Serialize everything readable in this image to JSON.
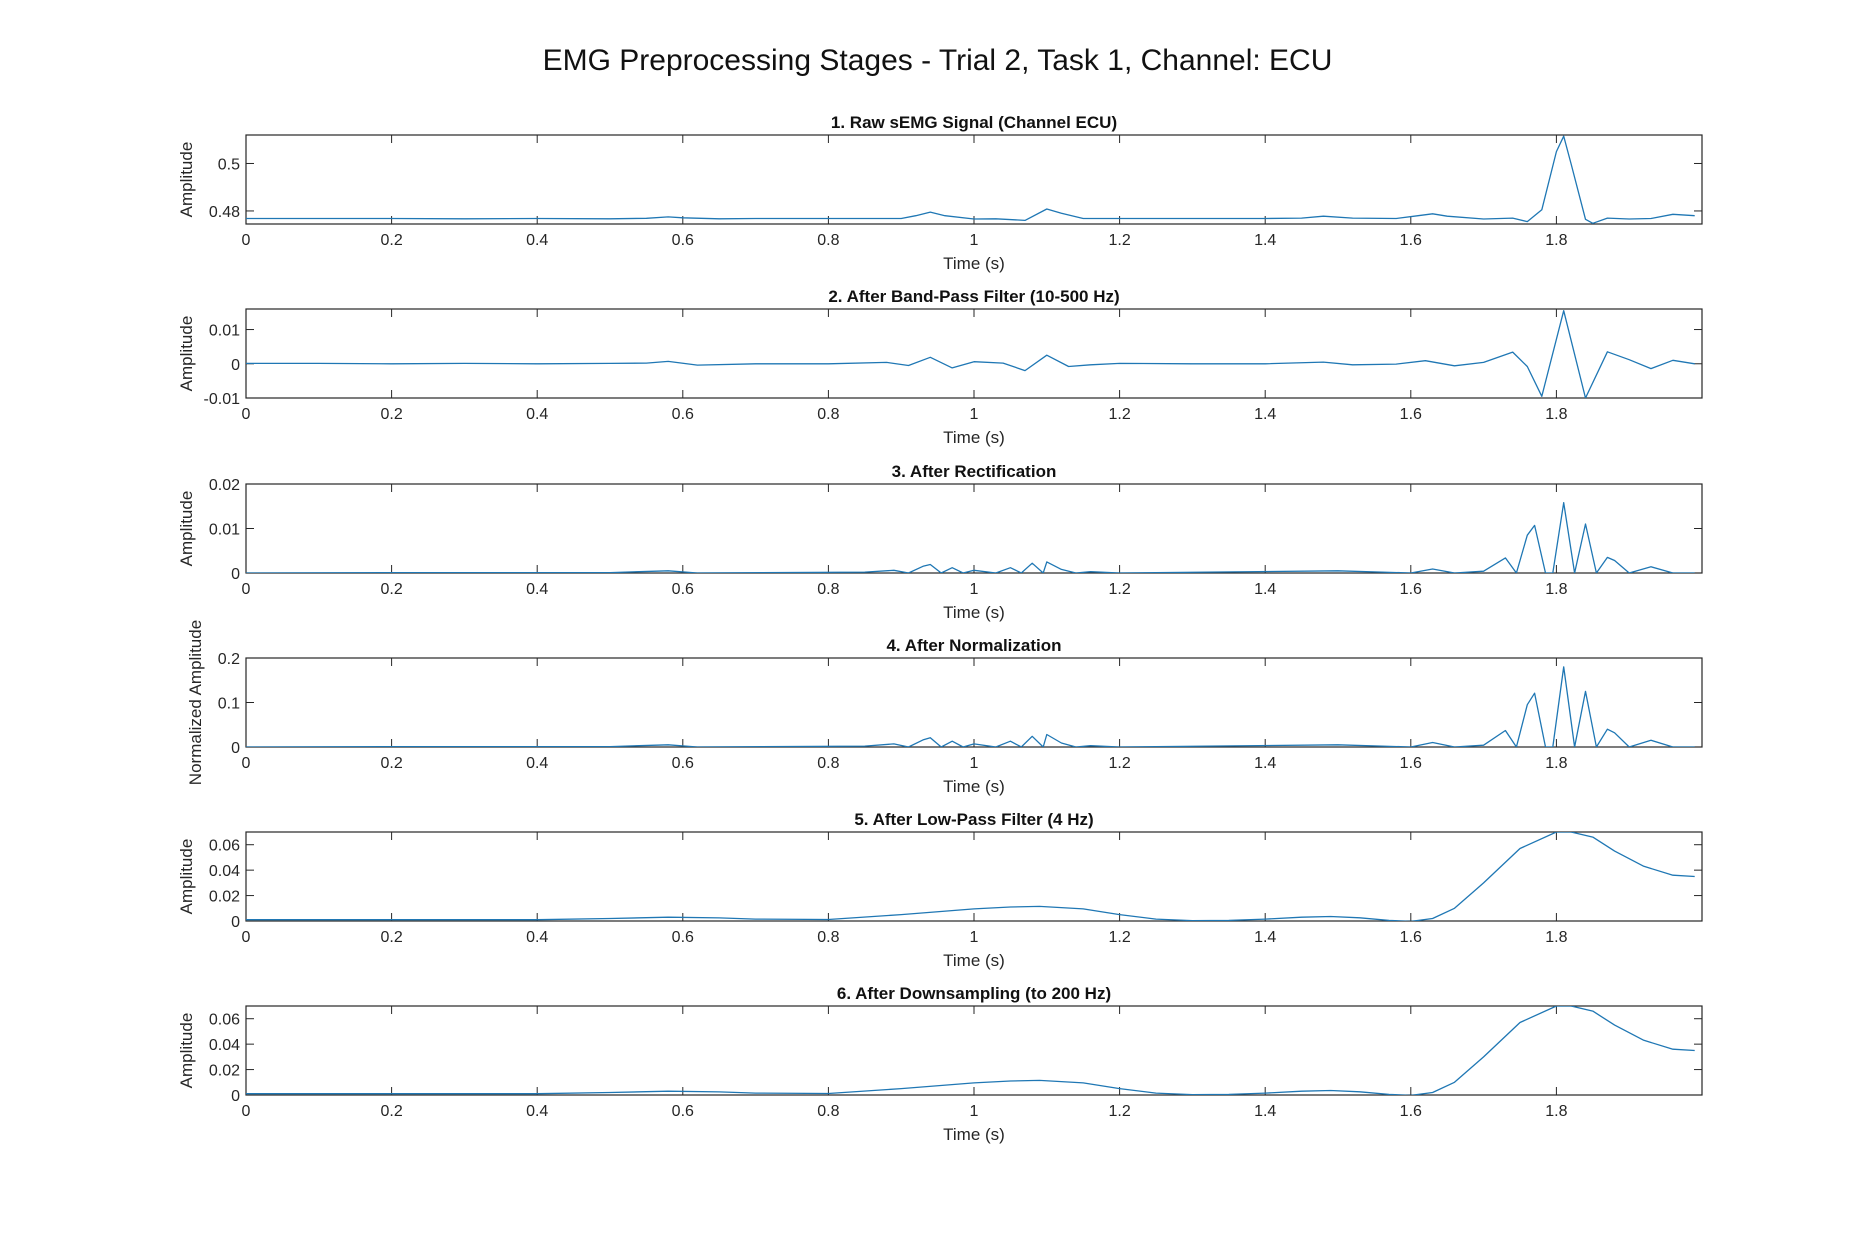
{
  "figure_title": "EMG Preprocessing Stages - Trial 2, Task 1, Channel: ECU",
  "colors": {
    "line": "#1f77b4",
    "axis": "#262626",
    "text": "#262626"
  },
  "chart_data": [
    {
      "type": "line",
      "title": "1. Raw sEMG Signal (Channel ECU)",
      "xlabel": "Time (s)",
      "ylabel": "Amplitude",
      "xlim": [
        0,
        2.0
      ],
      "ylim": [
        0.4745,
        0.512
      ],
      "xticks": [
        0,
        0.2,
        0.4,
        0.6,
        0.8,
        1,
        1.2,
        1.4,
        1.6,
        1.8
      ],
      "yticks": [
        0.48,
        0.5
      ],
      "grid": false,
      "x": [
        0,
        0.05,
        0.1,
        0.2,
        0.3,
        0.4,
        0.5,
        0.55,
        0.58,
        0.6,
        0.65,
        0.7,
        0.8,
        0.9,
        0.92,
        0.94,
        0.96,
        1.0,
        1.03,
        1.07,
        1.1,
        1.12,
        1.15,
        1.2,
        1.3,
        1.4,
        1.45,
        1.48,
        1.52,
        1.58,
        1.61,
        1.63,
        1.65,
        1.7,
        1.74,
        1.76,
        1.78,
        1.8,
        1.81,
        1.82,
        1.84,
        1.85,
        1.87,
        1.9,
        1.93,
        1.96,
        1.99
      ],
      "y": [
        0.4768,
        0.4768,
        0.4768,
        0.4768,
        0.4767,
        0.4768,
        0.4767,
        0.4769,
        0.4775,
        0.4771,
        0.4767,
        0.4768,
        0.4768,
        0.4768,
        0.478,
        0.4795,
        0.478,
        0.4766,
        0.4767,
        0.476,
        0.4808,
        0.479,
        0.4768,
        0.4768,
        0.4768,
        0.4768,
        0.477,
        0.4778,
        0.477,
        0.4768,
        0.478,
        0.4788,
        0.4778,
        0.4766,
        0.477,
        0.4755,
        0.4805,
        0.505,
        0.5115,
        0.5,
        0.4765,
        0.4748,
        0.477,
        0.4766,
        0.4768,
        0.4786,
        0.478
      ]
    },
    {
      "type": "line",
      "title": "2. After Band-Pass Filter (10-500 Hz)",
      "xlabel": "Time (s)",
      "ylabel": "Amplitude",
      "xlim": [
        0,
        2.0
      ],
      "ylim": [
        -0.01,
        0.016
      ],
      "xticks": [
        0,
        0.2,
        0.4,
        0.6,
        0.8,
        1,
        1.2,
        1.4,
        1.6,
        1.8
      ],
      "yticks": [
        -0.01,
        0,
        0.01
      ],
      "grid": false,
      "x": [
        0,
        0.1,
        0.2,
        0.3,
        0.4,
        0.5,
        0.55,
        0.58,
        0.62,
        0.7,
        0.8,
        0.88,
        0.91,
        0.94,
        0.97,
        1.0,
        1.04,
        1.07,
        1.1,
        1.13,
        1.16,
        1.2,
        1.3,
        1.4,
        1.48,
        1.52,
        1.58,
        1.62,
        1.66,
        1.7,
        1.74,
        1.76,
        1.78,
        1.81,
        1.84,
        1.87,
        1.9,
        1.93,
        1.96,
        1.99
      ],
      "y": [
        0.0001,
        0.0001,
        0.0,
        0.0001,
        0.0,
        0.0001,
        0.0002,
        0.0007,
        -0.0004,
        0.0,
        0.0,
        0.0004,
        -0.0005,
        0.0019,
        -0.0012,
        0.0006,
        0.0002,
        -0.002,
        0.0025,
        -0.0008,
        -0.0003,
        0.0001,
        0.0,
        0.0,
        0.0005,
        -0.0003,
        -0.0001,
        0.0009,
        -0.0006,
        0.0004,
        0.0034,
        -0.0008,
        -0.0095,
        0.0155,
        -0.01,
        0.0035,
        0.0012,
        -0.0014,
        0.001,
        0.0
      ]
    },
    {
      "type": "line",
      "title": "3. After Rectification",
      "xlabel": "Time (s)",
      "ylabel": "Amplitude",
      "xlim": [
        0,
        2.0
      ],
      "ylim": [
        0,
        0.02
      ],
      "xticks": [
        0,
        0.2,
        0.4,
        0.6,
        0.8,
        1,
        1.2,
        1.4,
        1.6,
        1.8
      ],
      "yticks": [
        0,
        0.01,
        0.02
      ],
      "grid": false,
      "x": [
        0,
        0.2,
        0.5,
        0.58,
        0.62,
        0.85,
        0.89,
        0.91,
        0.93,
        0.94,
        0.955,
        0.97,
        0.985,
        1.0,
        1.03,
        1.05,
        1.065,
        1.08,
        1.095,
        1.1,
        1.12,
        1.14,
        1.16,
        1.2,
        1.5,
        1.6,
        1.63,
        1.66,
        1.7,
        1.73,
        1.745,
        1.76,
        1.77,
        1.785,
        1.795,
        1.81,
        1.825,
        1.84,
        1.855,
        1.87,
        1.88,
        1.9,
        1.93,
        1.96,
        1.99
      ],
      "y": [
        0.0,
        0.0001,
        0.0001,
        0.0005,
        0.0,
        0.0002,
        0.0006,
        0.0,
        0.0015,
        0.0019,
        0.0,
        0.0012,
        0.0,
        0.0006,
        0.0,
        0.0012,
        0.0,
        0.0022,
        0.0,
        0.0025,
        0.0008,
        0.0,
        0.0003,
        0.0,
        0.0005,
        0.0,
        0.0009,
        0.0,
        0.0004,
        0.0034,
        0.0,
        0.0085,
        0.0107,
        0.0,
        0.0,
        0.0158,
        0.0,
        0.011,
        0.0,
        0.0035,
        0.0028,
        0.0,
        0.0014,
        0.0,
        0.0
      ]
    },
    {
      "type": "line",
      "title": "4. After Normalization",
      "xlabel": "Time (s)",
      "ylabel": "Normalized Amplitude",
      "xlim": [
        0,
        2.0
      ],
      "ylim": [
        0,
        0.2
      ],
      "xticks": [
        0,
        0.2,
        0.4,
        0.6,
        0.8,
        1,
        1.2,
        1.4,
        1.6,
        1.8
      ],
      "yticks": [
        0,
        0.1,
        0.2
      ],
      "grid": false,
      "x": [
        0,
        0.2,
        0.5,
        0.58,
        0.62,
        0.85,
        0.89,
        0.91,
        0.93,
        0.94,
        0.955,
        0.97,
        0.985,
        1.0,
        1.03,
        1.05,
        1.065,
        1.08,
        1.095,
        1.1,
        1.12,
        1.14,
        1.16,
        1.2,
        1.5,
        1.6,
        1.63,
        1.66,
        1.7,
        1.73,
        1.745,
        1.76,
        1.77,
        1.785,
        1.795,
        1.81,
        1.825,
        1.84,
        1.855,
        1.87,
        1.88,
        1.9,
        1.93,
        1.96,
        1.99
      ],
      "y": [
        0.0,
        0.001,
        0.001,
        0.005,
        0.0,
        0.002,
        0.007,
        0.0,
        0.016,
        0.021,
        0.0,
        0.013,
        0.0,
        0.007,
        0.0,
        0.013,
        0.0,
        0.024,
        0.0,
        0.028,
        0.009,
        0.0,
        0.003,
        0.0,
        0.005,
        0.0,
        0.01,
        0.0,
        0.004,
        0.037,
        0.0,
        0.095,
        0.121,
        0.0,
        0.0,
        0.18,
        0.0,
        0.125,
        0.0,
        0.04,
        0.032,
        0.0,
        0.015,
        0.0,
        0.0
      ]
    },
    {
      "type": "line",
      "title": "5. After Low-Pass Filter (4 Hz)",
      "xlabel": "Time (s)",
      "ylabel": "Amplitude",
      "xlim": [
        0,
        2.0
      ],
      "ylim": [
        0,
        0.07
      ],
      "xticks": [
        0,
        0.2,
        0.4,
        0.6,
        0.8,
        1,
        1.2,
        1.4,
        1.6,
        1.8
      ],
      "yticks": [
        0,
        0.02,
        0.04,
        0.06
      ],
      "grid": false,
      "x": [
        0,
        0.1,
        0.2,
        0.3,
        0.4,
        0.5,
        0.58,
        0.65,
        0.7,
        0.8,
        0.9,
        1.0,
        1.05,
        1.09,
        1.15,
        1.2,
        1.25,
        1.3,
        1.35,
        1.4,
        1.45,
        1.49,
        1.53,
        1.57,
        1.6,
        1.63,
        1.66,
        1.7,
        1.75,
        1.8,
        1.82,
        1.85,
        1.88,
        1.92,
        1.96,
        1.99
      ],
      "y": [
        0.001,
        0.001,
        0.001,
        0.001,
        0.001,
        0.002,
        0.003,
        0.0024,
        0.0015,
        0.0012,
        0.005,
        0.0095,
        0.011,
        0.0115,
        0.0095,
        0.005,
        0.0015,
        0.0003,
        0.0005,
        0.0015,
        0.003,
        0.0035,
        0.0025,
        0.0005,
        -0.0003,
        0.002,
        0.01,
        0.03,
        0.057,
        0.07,
        0.07,
        0.066,
        0.055,
        0.043,
        0.036,
        0.035
      ]
    },
    {
      "type": "line",
      "title": "6. After Downsampling (to 200 Hz)",
      "xlabel": "Time (s)",
      "ylabel": "Amplitude",
      "xlim": [
        0,
        2.0
      ],
      "ylim": [
        0,
        0.07
      ],
      "xticks": [
        0,
        0.2,
        0.4,
        0.6,
        0.8,
        1,
        1.2,
        1.4,
        1.6,
        1.8
      ],
      "yticks": [
        0,
        0.02,
        0.04,
        0.06
      ],
      "grid": false,
      "x": [
        0,
        0.1,
        0.2,
        0.3,
        0.4,
        0.5,
        0.58,
        0.65,
        0.7,
        0.8,
        0.9,
        1.0,
        1.05,
        1.09,
        1.15,
        1.2,
        1.25,
        1.3,
        1.35,
        1.4,
        1.45,
        1.49,
        1.53,
        1.57,
        1.6,
        1.63,
        1.66,
        1.7,
        1.75,
        1.8,
        1.82,
        1.85,
        1.88,
        1.92,
        1.96,
        1.99
      ],
      "y": [
        0.001,
        0.001,
        0.001,
        0.001,
        0.001,
        0.002,
        0.003,
        0.0024,
        0.0015,
        0.0012,
        0.005,
        0.0095,
        0.011,
        0.0115,
        0.0095,
        0.005,
        0.0015,
        0.0003,
        0.0005,
        0.0015,
        0.003,
        0.0035,
        0.0025,
        0.0005,
        -0.0003,
        0.002,
        0.01,
        0.03,
        0.057,
        0.07,
        0.07,
        0.066,
        0.055,
        0.043,
        0.036,
        0.035
      ]
    }
  ]
}
